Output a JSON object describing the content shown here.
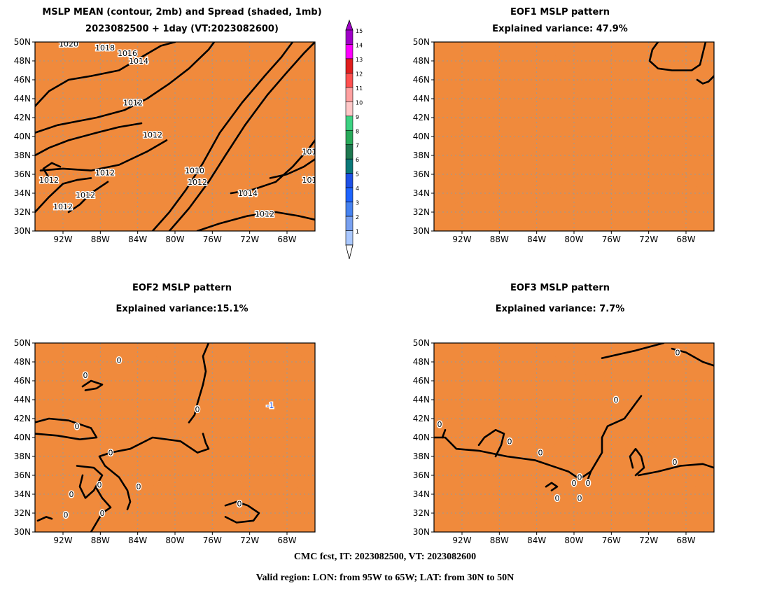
{
  "panels": [
    {
      "title": "MSLP MEAN (contour, 2mb) and Spread (shaded, 1mb)",
      "subtitle": "2023082500 + 1day (VT:2023082600)"
    },
    {
      "title": "EOF1 MSLP pattern",
      "subtitle": "Explained variance: 47.9%"
    },
    {
      "title": "EOF2 MSLP pattern",
      "subtitle": "Explained variance:15.1%"
    },
    {
      "title": "EOF3 MSLP pattern",
      "subtitle": "Explained variance: 7.7%"
    }
  ],
  "lat_labels": [
    "50N",
    "48N",
    "46N",
    "44N",
    "42N",
    "40N",
    "38N",
    "36N",
    "34N",
    "32N",
    "30N"
  ],
  "lon_labels": [
    "92W",
    "88W",
    "84W",
    "80W",
    "76W",
    "72W",
    "68W"
  ],
  "colorbar": {
    "labels": [
      "15",
      "14",
      "13",
      "12",
      "11",
      "10",
      "9",
      "8",
      "7",
      "6",
      "5",
      "4",
      "3",
      "2",
      "1"
    ],
    "colors": [
      "#a000c8",
      "#ff00ff",
      "#e01e1e",
      "#ff5050",
      "#ffa0a0",
      "#ffc8c8",
      "#3cd282",
      "#28aa5a",
      "#1e7850",
      "#0a7878",
      "#1e50e6",
      "#1e64ff",
      "#4682f0",
      "#78a0f0",
      "#aac8ff"
    ]
  },
  "contour_labels": {
    "mean": [
      "1020",
      "1018",
      "1016",
      "1014",
      "1012",
      "1012",
      "1012",
      "1012",
      "1012",
      "1012",
      "1010",
      "1012",
      "1014",
      "1012",
      "101",
      "101"
    ],
    "eof2": [
      "0",
      "0",
      "0",
      "0",
      "0",
      "0",
      "0",
      "0",
      "0",
      "0",
      "0",
      "-1"
    ],
    "eof3": [
      "0",
      "0",
      "0",
      "0",
      "0",
      "0",
      "0",
      "0",
      "0",
      "0",
      "0"
    ]
  },
  "footer": {
    "line1": "CMC fcst, IT: 2023082500, VT: 2023082600",
    "line2": "Valid region: LON: from 95W to 65W; LAT: from 30N to 50N"
  },
  "colors": {
    "land": "#f08a3c",
    "contour": "#000000",
    "shade": "#8cb0f0",
    "grid": "#999999"
  }
}
